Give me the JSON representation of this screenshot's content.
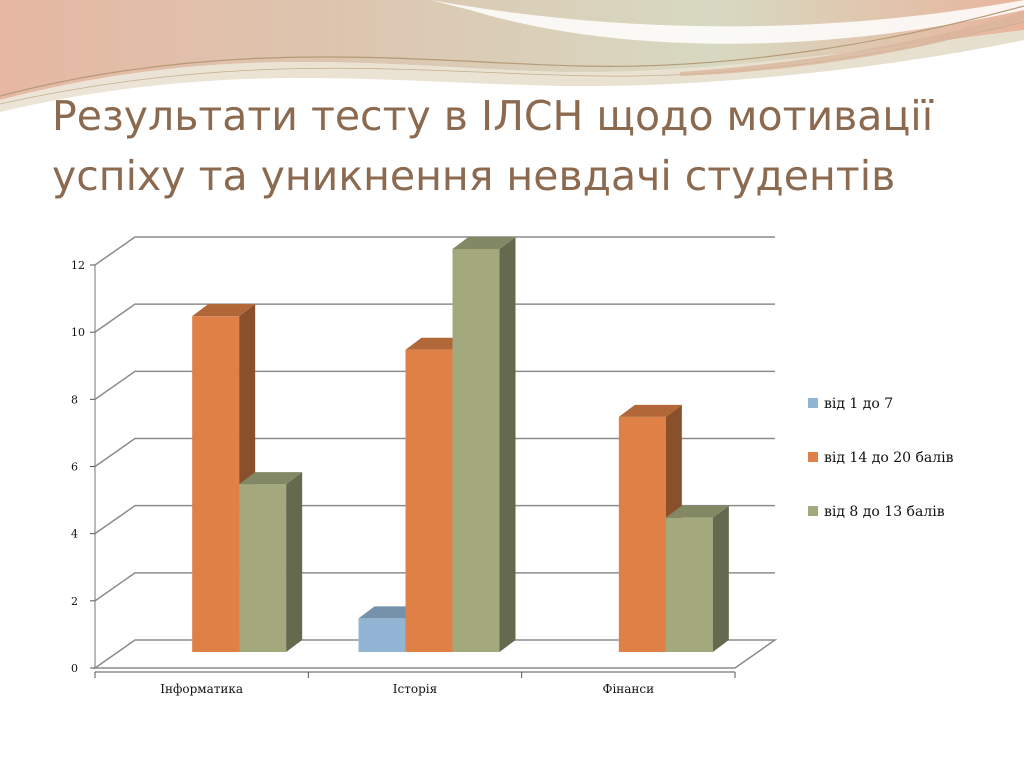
{
  "slide": {
    "title_line1": "Результати тесту в ІЛСН щодо мотивації",
    "title_line2": "успіху та уникнення невдачі студентів"
  },
  "chart_data": {
    "type": "bar",
    "categories": [
      "Інформатика",
      "Історія",
      "Фінанси"
    ],
    "series": [
      {
        "name": "від 1 до 7",
        "values": [
          0,
          1,
          0
        ],
        "color": "#93b5d5"
      },
      {
        "name": "від 14 до 20 балів",
        "values": [
          10,
          9,
          7
        ],
        "color": "#df8147"
      },
      {
        "name": "від 8 до 13 балів",
        "values": [
          5,
          12,
          4
        ],
        "color": "#a3a97d"
      }
    ],
    "yticks": [
      "0",
      "2",
      "4",
      "6",
      "8",
      "10",
      "12"
    ],
    "ylim": [
      0,
      12
    ],
    "grid": true,
    "legend_position": "right",
    "style": "3d-clustered-column"
  },
  "theme": {
    "title_color": "#8b6a50",
    "grid_color": "#8c8c8c"
  }
}
